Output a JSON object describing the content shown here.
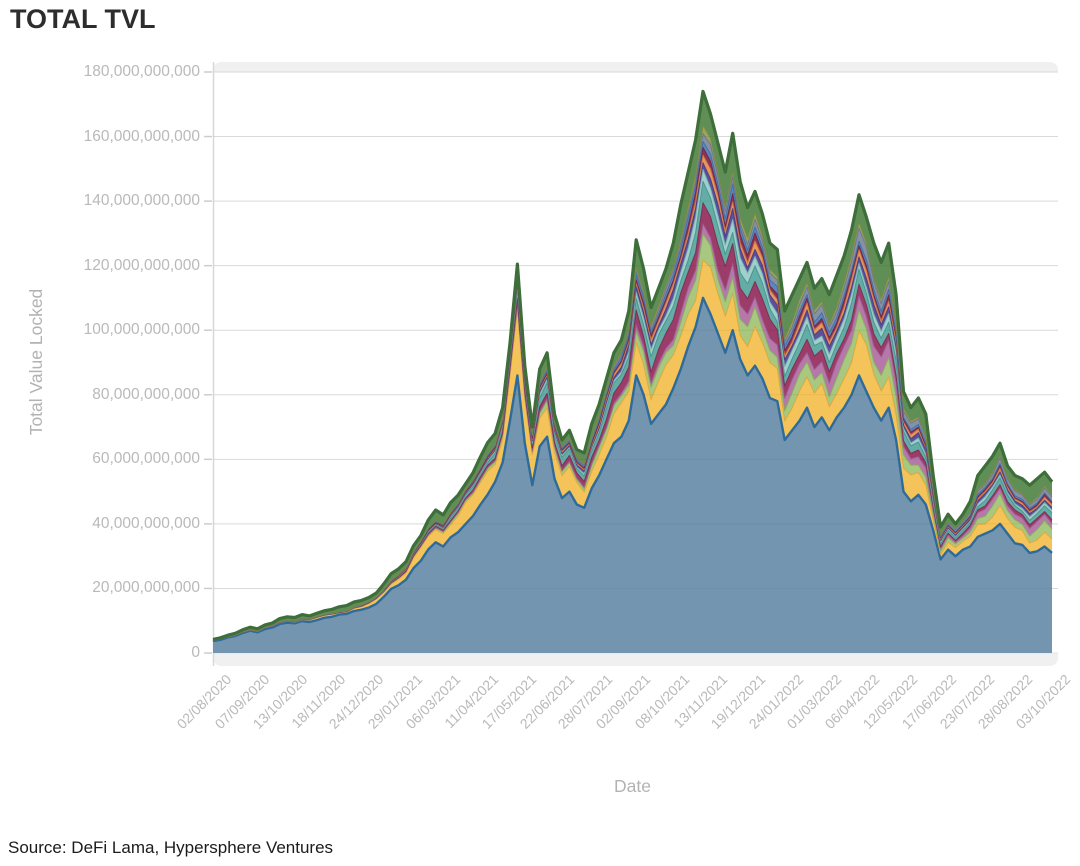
{
  "title": "TOTAL TVL",
  "source": "Source: DeFi Lama, Hypersphere Ventures",
  "chart_data": {
    "type": "area",
    "stacked": true,
    "title": "TOTAL TVL",
    "xlabel": "Date",
    "ylabel": "Total Value Locked",
    "unit": "USD",
    "legend": "none",
    "grid": "horizontal",
    "ylim_billions": [
      0,
      180
    ],
    "y_tick_step_billions": 20,
    "y_tick_labels": [
      "0",
      "20,000,000,000",
      "40,000,000,000",
      "60,000,000,000",
      "80,000,000,000",
      "100,000,000,000",
      "120,000,000,000",
      "140,000,000,000",
      "160,000,000,000",
      "180,000,000,000"
    ],
    "x_tick_labels": [
      "02/08/2020",
      "07/09/2020",
      "13/10/2020",
      "18/11/2020",
      "24/12/2020",
      "29/01/2021",
      "06/03/2021",
      "11/04/2021",
      "17/05/2021",
      "22/06/2021",
      "28/07/2021",
      "02/09/2021",
      "08/10/2021",
      "13/11/2021",
      "19/12/2021",
      "24/01/2022",
      "01/03/2022",
      "06/04/2022",
      "12/05/2022",
      "17/06/2022",
      "23/07/2022",
      "28/08/2022",
      "03/10/2022"
    ],
    "x_start": "02/08/2020",
    "x_end": "03/10/2022",
    "sampling": "weekly",
    "total_tvl_billions": [
      4.2,
      4.7,
      5.5,
      6.1,
      7.2,
      8.0,
      7.5,
      8.7,
      9.3,
      10.7,
      11.2,
      11.0,
      11.9,
      11.5,
      12.3,
      13.1,
      13.5,
      14.3,
      14.7,
      15.8,
      16.3,
      17.2,
      18.6,
      21.4,
      24.6,
      26.1,
      28.3,
      33.2,
      36.4,
      41.2,
      44.3,
      42.8,
      46.6,
      48.9,
      52.3,
      55.8,
      60.7,
      65.2,
      68.0,
      76.0,
      96.0,
      120.5,
      89.0,
      70.0,
      88.0,
      93.0,
      74.0,
      66.0,
      69.0,
      63.0,
      62.0,
      71.0,
      77.0,
      85.0,
      93.0,
      97.0,
      106.0,
      128.0,
      119.0,
      107.0,
      113.0,
      119.0,
      127.0,
      139.0,
      149.0,
      159.0,
      174.0,
      167.0,
      158.0,
      149.0,
      161.0,
      146.0,
      138.0,
      143.0,
      136.0,
      127.0,
      125.0,
      106.0,
      111.0,
      116.0,
      121.0,
      113.0,
      116.0,
      111.0,
      117.0,
      123.0,
      131.0,
      142.0,
      135.0,
      127.0,
      121.0,
      127.0,
      111.0,
      81.0,
      76.0,
      79.0,
      74.0,
      55.0,
      39.0,
      43.0,
      40.0,
      43.0,
      47.0,
      55.0,
      58.0,
      61.0,
      65.0,
      58.0,
      55.0,
      54.0,
      52.0,
      54.0,
      56.0,
      53.0
    ],
    "weight_keyframe_weeks": [
      0,
      20,
      30,
      39,
      41,
      45,
      52,
      57,
      66,
      74,
      87,
      93,
      98,
      105,
      113
    ],
    "series": [
      {
        "name": "base-steel-blue",
        "color": "#7495b0",
        "stroke": "#2e6b9a",
        "values_billions": [
          3.7,
          4.1,
          4.8,
          5.3,
          6.2,
          6.9,
          6.4,
          7.4,
          7.9,
          9.0,
          9.4,
          9.2,
          9.9,
          9.6,
          10.2,
          10.9,
          11.2,
          11.9,
          12.1,
          13.0,
          13.4,
          14.1,
          15.2,
          17.4,
          19.9,
          21.0,
          22.7,
          26.3,
          28.6,
          32.1,
          34.3,
          33.0,
          35.8,
          37.4,
          39.9,
          42.4,
          45.9,
          49.1,
          53.0,
          59.0,
          72.0,
          86.0,
          65.0,
          52.0,
          64.0,
          67.0,
          54.0,
          48.0,
          50.0,
          46.0,
          45.0,
          51.0,
          55.0,
          60.0,
          65.0,
          67.0,
          72.0,
          86.0,
          80.0,
          71.0,
          74.0,
          77.0,
          82.0,
          88.0,
          95.0,
          101.0,
          110.0,
          105.0,
          99.0,
          93.0,
          100.0,
          91.0,
          86.0,
          89.0,
          85.0,
          79.0,
          78.0,
          66.0,
          69.0,
          72.0,
          76.0,
          70.0,
          73.0,
          69.0,
          73.0,
          76.0,
          80.0,
          86.0,
          81.0,
          76.0,
          72.0,
          76.0,
          66.0,
          50.0,
          47.0,
          49.0,
          46.0,
          38.0,
          29.0,
          32.0,
          30.0,
          32.0,
          33.0,
          36.0,
          37.0,
          38.0,
          40.0,
          37.0,
          34.0,
          33.5,
          31.0,
          31.5,
          33.0,
          31.0
        ]
      },
      {
        "name": "band-gold",
        "color": "#f4c45a",
        "stroke": "#dda636",
        "share_weights": [
          0.2,
          0.8,
          4,
          8,
          21,
          12,
          9,
          16,
          15,
          13,
          14,
          8,
          3.5,
          6,
          6
        ]
      },
      {
        "name": "band-light-green",
        "color": "#a8c77f",
        "stroke": "#87aa5c",
        "share_weights": [
          0.02,
          0.1,
          0.5,
          1,
          2,
          2,
          2.5,
          5,
          8,
          6,
          7,
          4,
          1.5,
          3.5,
          4
        ]
      },
      {
        "name": "band-orchid",
        "color": "#b678ab",
        "stroke": "#995a8f",
        "share_weights": [
          0,
          0.01,
          0.1,
          0.3,
          0.6,
          0.6,
          0.8,
          2,
          4,
          5,
          6,
          3.5,
          1.2,
          2.5,
          3
        ]
      },
      {
        "name": "band-magenta",
        "color": "#9c3c68",
        "stroke": "#7a2a50",
        "share_weights": [
          0,
          0.05,
          0.3,
          0.8,
          1.5,
          2,
          3,
          6,
          9,
          7,
          4,
          2,
          0.8,
          1.5,
          1.5
        ]
      },
      {
        "name": "band-teal",
        "color": "#64ada7",
        "stroke": "#468f89",
        "share_weights": [
          0.02,
          0.1,
          0.5,
          1.5,
          3,
          3.5,
          3,
          6,
          7,
          5,
          5,
          3,
          1.2,
          2.2,
          2.2
        ]
      },
      {
        "name": "band-pale-cyan",
        "color": "#9fd0cc",
        "stroke": "#79b3ae",
        "share_weights": [
          0,
          0.02,
          0.2,
          0.5,
          1,
          1,
          1,
          2.5,
          5,
          4,
          3,
          1.5,
          0.7,
          1.2,
          1.2
        ]
      },
      {
        "name": "band-purple",
        "color": "#5d4f9c",
        "stroke": "#46397f",
        "share_weights": [
          0,
          0.02,
          0.2,
          0.5,
          1,
          1,
          1,
          2.5,
          4,
          3,
          3,
          1.5,
          0.8,
          1.2,
          1.2
        ]
      },
      {
        "name": "band-salmon",
        "color": "#e8985c",
        "stroke": "#ca7840",
        "share_weights": [
          0,
          0.02,
          0.2,
          0.4,
          0.8,
          0.8,
          1,
          2,
          3,
          2.5,
          2.5,
          1.2,
          0.6,
          1,
          1
        ]
      },
      {
        "name": "band-maroon",
        "color": "#8e3355",
        "stroke": "#6e2440",
        "share_weights": [
          0,
          0.01,
          0.1,
          0.3,
          0.6,
          0.6,
          0.8,
          1.5,
          3,
          2.5,
          2,
          1,
          0.5,
          0.8,
          0.8
        ]
      },
      {
        "name": "band-bright-blue",
        "color": "#5b88c0",
        "stroke": "#3f6ca3",
        "share_weights": [
          0,
          0.05,
          0.3,
          0.5,
          1,
          1,
          1,
          2,
          3,
          2.5,
          2,
          1,
          0.5,
          0.8,
          0.8
        ]
      },
      {
        "name": "band-slate-gray",
        "color": "#8692a4",
        "stroke": "#6a7689",
        "share_weights": [
          0,
          0.01,
          0.1,
          0.3,
          0.6,
          0.6,
          0.8,
          1.5,
          3,
          2.5,
          4,
          2,
          0.8,
          1.8,
          2
        ]
      },
      {
        "name": "band-olive",
        "color": "#98a55c",
        "stroke": "#7b8842",
        "share_weights": [
          0,
          0.01,
          0.1,
          0.2,
          0.5,
          0.5,
          0.8,
          1.5,
          2.5,
          2,
          2,
          1,
          0.4,
          0.7,
          0.7
        ]
      },
      {
        "name": "band-top-green",
        "color": "#5f8f55",
        "stroke": "#3e6e3a",
        "share_weights": [
          0.5,
          1.5,
          2.5,
          3,
          4,
          4,
          5,
          9,
          14,
          11,
          12,
          7,
          3.5,
          6,
          7
        ]
      }
    ],
    "panel_color": "#f0f0f0",
    "gridline_color": "#e5e5e5",
    "axis_line_color": "#d8d8d8",
    "tick_label_color": "#b9b9b9"
  }
}
